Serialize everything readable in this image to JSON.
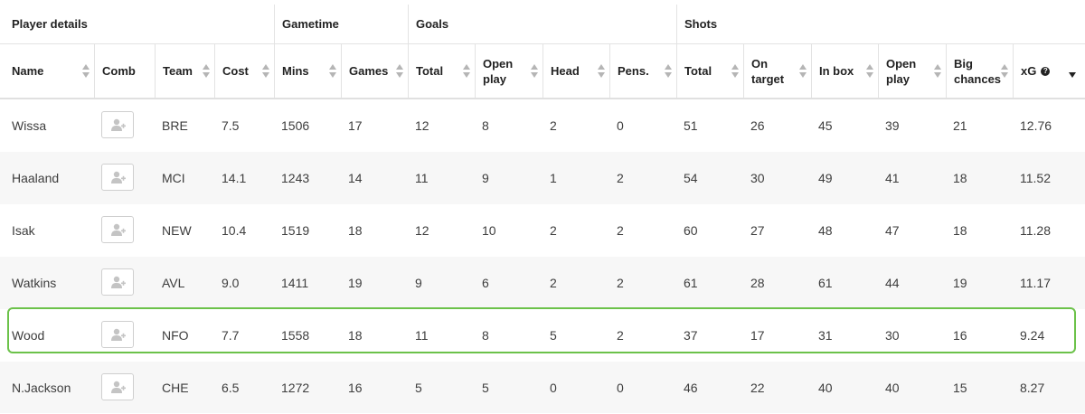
{
  "groups": [
    {
      "label": "Player details"
    },
    {
      "label": "Gametime"
    },
    {
      "label": "Goals"
    },
    {
      "label": "Shots"
    }
  ],
  "columns": [
    {
      "key": "name",
      "label": "Name"
    },
    {
      "key": "comb",
      "label": "Comb"
    },
    {
      "key": "team",
      "label": "Team"
    },
    {
      "key": "cost",
      "label": "Cost"
    },
    {
      "key": "mins",
      "label": "Mins"
    },
    {
      "key": "games",
      "label": "Games"
    },
    {
      "key": "goals_total",
      "label": "Total"
    },
    {
      "key": "goals_open",
      "label": "Open play"
    },
    {
      "key": "goals_head",
      "label": "Head"
    },
    {
      "key": "goals_pens",
      "label": "Pens."
    },
    {
      "key": "shots_total",
      "label": "Total"
    },
    {
      "key": "shots_on",
      "label": "On target"
    },
    {
      "key": "shots_box",
      "label": "In box"
    },
    {
      "key": "shots_open",
      "label": "Open play"
    },
    {
      "key": "big_chances",
      "label": "Big chances"
    },
    {
      "key": "xg",
      "label": "xG"
    }
  ],
  "help_icon": "?",
  "sort": {
    "column": "xG",
    "direction": "descending"
  },
  "rows": [
    {
      "name": "Wissa",
      "team": "BRE",
      "cost": "7.5",
      "mins": "1506",
      "games": "17",
      "goals_total": "12",
      "goals_open": "8",
      "goals_head": "2",
      "goals_pens": "0",
      "shots_total": "51",
      "shots_on": "26",
      "shots_box": "45",
      "shots_open": "39",
      "big_chances": "21",
      "xg": "12.76"
    },
    {
      "name": "Haaland",
      "team": "MCI",
      "cost": "14.1",
      "mins": "1243",
      "games": "14",
      "goals_total": "11",
      "goals_open": "9",
      "goals_head": "1",
      "goals_pens": "2",
      "shots_total": "54",
      "shots_on": "30",
      "shots_box": "49",
      "shots_open": "41",
      "big_chances": "18",
      "xg": "11.52"
    },
    {
      "name": "Isak",
      "team": "NEW",
      "cost": "10.4",
      "mins": "1519",
      "games": "18",
      "goals_total": "12",
      "goals_open": "10",
      "goals_head": "2",
      "goals_pens": "2",
      "shots_total": "60",
      "shots_on": "27",
      "shots_box": "48",
      "shots_open": "47",
      "big_chances": "18",
      "xg": "11.28"
    },
    {
      "name": "Watkins",
      "team": "AVL",
      "cost": "9.0",
      "mins": "1411",
      "games": "19",
      "goals_total": "9",
      "goals_open": "6",
      "goals_head": "2",
      "goals_pens": "2",
      "shots_total": "61",
      "shots_on": "28",
      "shots_box": "61",
      "shots_open": "44",
      "big_chances": "19",
      "xg": "11.17"
    },
    {
      "name": "Wood",
      "team": "NFO",
      "cost": "7.7",
      "mins": "1558",
      "games": "18",
      "goals_total": "11",
      "goals_open": "8",
      "goals_head": "5",
      "goals_pens": "2",
      "shots_total": "37",
      "shots_on": "17",
      "shots_box": "31",
      "shots_open": "30",
      "big_chances": "16",
      "xg": "9.24",
      "highlighted": true
    },
    {
      "name": "N.Jackson",
      "team": "CHE",
      "cost": "6.5",
      "mins": "1272",
      "games": "16",
      "goals_total": "5",
      "goals_open": "5",
      "goals_head": "0",
      "goals_pens": "0",
      "shots_total": "46",
      "shots_on": "22",
      "shots_box": "40",
      "shots_open": "40",
      "big_chances": "15",
      "xg": "8.27"
    }
  ],
  "icons": {
    "comb_button": "add-user-icon",
    "sort": "sort-arrows-icon",
    "help": "help-circle-icon"
  },
  "colors": {
    "highlight": "#6cc24a",
    "alt_row": "#f7f7f7",
    "border": "#e3e3e3"
  }
}
